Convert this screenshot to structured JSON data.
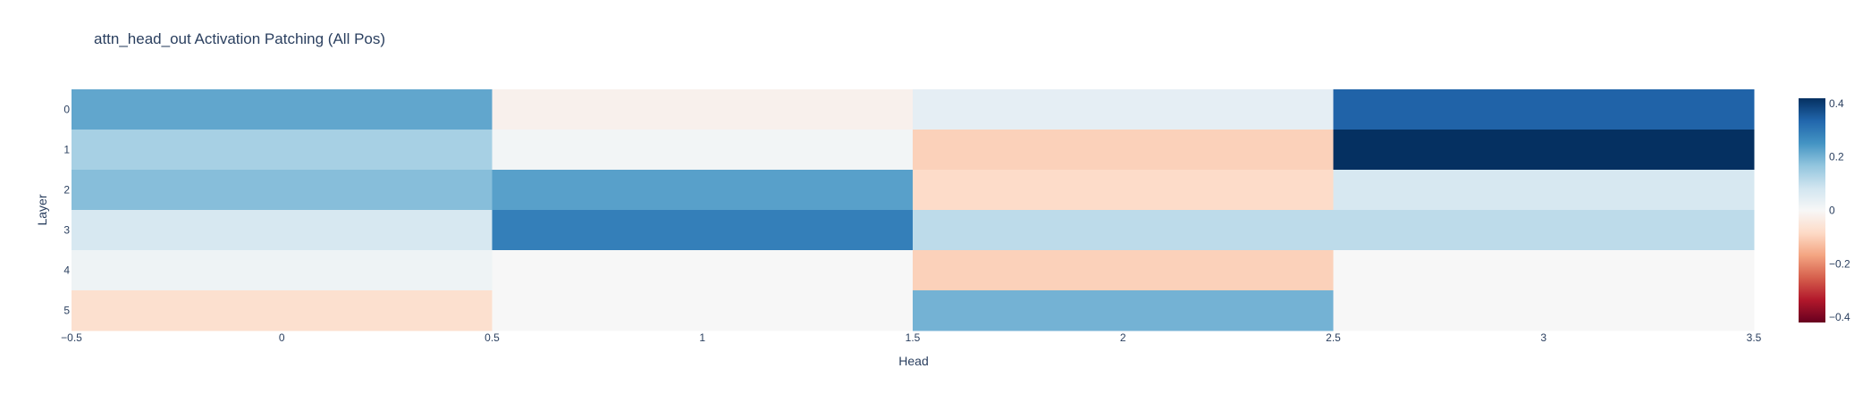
{
  "chart_data": {
    "type": "heatmap",
    "title": "attn_head_out Activation Patching (All Pos)",
    "xlabel": "Head",
    "ylabel": "Layer",
    "x": [
      0,
      1,
      2,
      3
    ],
    "y": [
      0,
      1,
      2,
      3,
      4,
      5
    ],
    "xlim": [
      -0.5,
      3.5
    ],
    "x_ticks": [
      "−0.5",
      "0",
      "0.5",
      "1",
      "1.5",
      "2",
      "2.5",
      "3",
      "3.5"
    ],
    "y_ticks": [
      "0",
      "1",
      "2",
      "3",
      "4",
      "5"
    ],
    "z": [
      [
        0.22,
        -0.02,
        0.04,
        0.34
      ],
      [
        0.14,
        0.01,
        -0.1,
        0.42
      ],
      [
        0.18,
        0.23,
        -0.08,
        0.07
      ],
      [
        0.07,
        0.29,
        0.11,
        0.11
      ],
      [
        0.02,
        0.0,
        -0.1,
        0.0
      ],
      [
        -0.07,
        0.0,
        0.2,
        0.0
      ]
    ],
    "zlim": [
      -0.42,
      0.42
    ],
    "colorscale": "RdBu",
    "colorbar_ticks": [
      {
        "value": 0.4,
        "label": "0.4"
      },
      {
        "value": 0.2,
        "label": "0.2"
      },
      {
        "value": 0,
        "label": "0"
      },
      {
        "value": -0.2,
        "label": "−0.2"
      },
      {
        "value": -0.4,
        "label": "−0.4"
      }
    ],
    "colorscale_stops": [
      "#67001f",
      "#b2182b",
      "#d6604d",
      "#f4a582",
      "#fddbc7",
      "#f7f7f7",
      "#d1e5f0",
      "#92c5de",
      "#4393c3",
      "#2166ac",
      "#053061"
    ]
  }
}
